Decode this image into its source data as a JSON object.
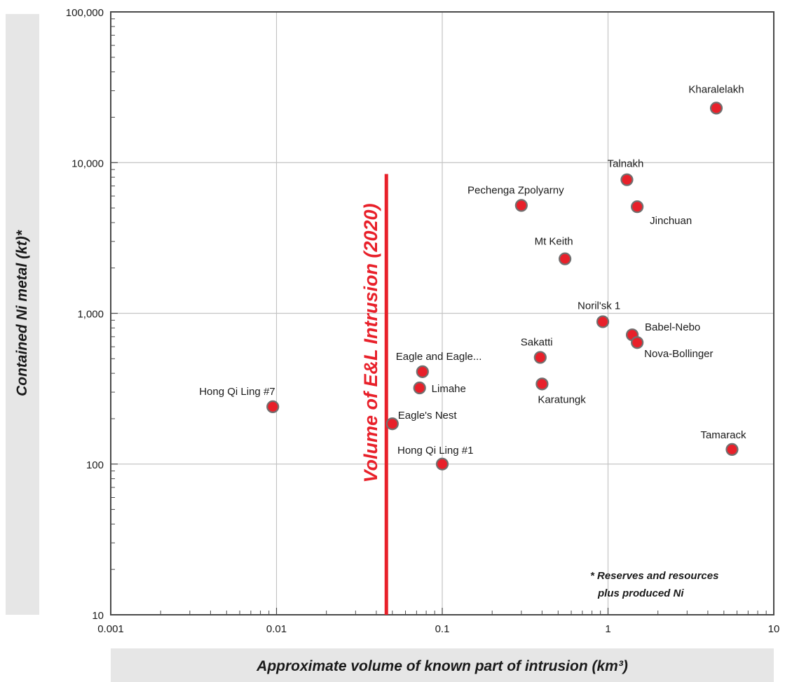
{
  "chart_data": {
    "type": "scatter",
    "title": "",
    "xlabel": "Approximate volume of known part of intrusion (km³)",
    "ylabel": "Contained Ni metal (kt)*",
    "x_scale": "log",
    "y_scale": "log",
    "xlim": [
      0.001,
      10
    ],
    "ylim": [
      10,
      100000
    ],
    "x_ticks": [
      "0.001",
      "0.01",
      "0.1",
      "1",
      "10"
    ],
    "y_ticks": [
      "10",
      "100",
      "1,000",
      "10,000",
      "100,000"
    ],
    "grid": true,
    "marker_color": "#e8202a",
    "points": [
      {
        "label": "Kharalelakh",
        "x": 4.5,
        "y": 23000
      },
      {
        "label": "Talnakh",
        "x": 1.3,
        "y": 7700
      },
      {
        "label": "Jinchuan",
        "x": 1.5,
        "y": 5100
      },
      {
        "label": "Pechenga Zpolyarny",
        "x": 0.3,
        "y": 5200
      },
      {
        "label": "Mt Keith",
        "x": 0.55,
        "y": 2300
      },
      {
        "label": "Noril'sk 1",
        "x": 0.93,
        "y": 880
      },
      {
        "label": "Babel-Nebo",
        "x": 1.4,
        "y": 720
      },
      {
        "label": "Nova-Bollinger",
        "x": 1.5,
        "y": 640
      },
      {
        "label": "Sakatti",
        "x": 0.39,
        "y": 510
      },
      {
        "label": "Eagle and Eagle...",
        "x": 0.076,
        "y": 410
      },
      {
        "label": "Limahe",
        "x": 0.073,
        "y": 320
      },
      {
        "label": "Karatungk",
        "x": 0.4,
        "y": 340
      },
      {
        "label": "Hong Qi Ling #7",
        "x": 0.0095,
        "y": 240
      },
      {
        "label": "Eagle's Nest",
        "x": 0.05,
        "y": 185
      },
      {
        "label": "Hong Qi Ling #1",
        "x": 0.1,
        "y": 100
      },
      {
        "label": "Tamarack",
        "x": 5.6,
        "y": 125
      }
    ],
    "annotations": {
      "vertical_line_label": "Volume of E&L Intrusion (2020)",
      "vertical_line_x": 0.046,
      "vertical_line_ymax": 8400,
      "footnote_line1": "* Reserves and resources",
      "footnote_line2": "plus produced Ni"
    }
  }
}
